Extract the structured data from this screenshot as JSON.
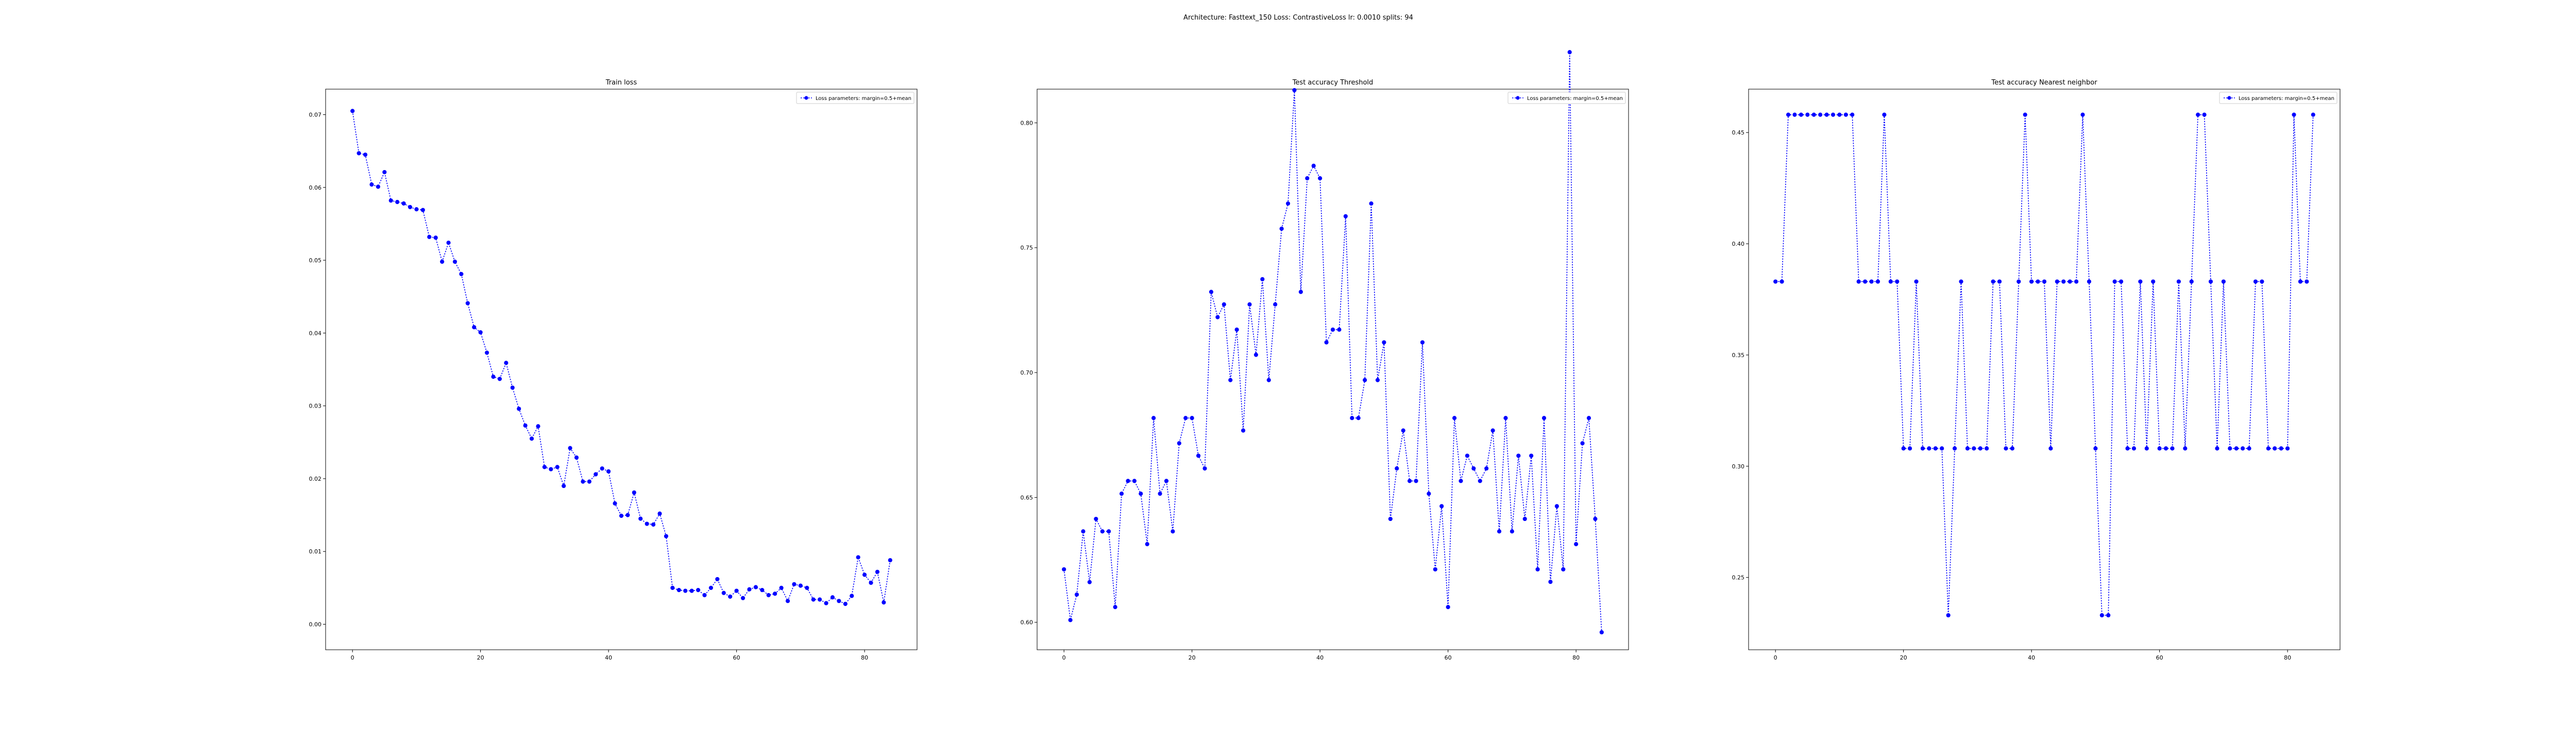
{
  "suptitle": "Architecture: Fasttext_150 Loss: ContrastiveLoss lr: 0.0010 splits: 94",
  "chart_data": [
    {
      "type": "line",
      "title": "Train loss",
      "xlabel": "",
      "ylabel": "",
      "xlim": [
        -4.2,
        88.2
      ],
      "ylim": [
        -0.0035,
        0.0735
      ],
      "xticks": [
        0,
        20,
        40,
        60,
        80
      ],
      "yticks": [
        0.0,
        0.01,
        0.02,
        0.03,
        0.04,
        0.05,
        0.06,
        0.07
      ],
      "ytick_labels": [
        "0.00",
        "0.01",
        "0.02",
        "0.03",
        "0.04",
        "0.05",
        "0.06",
        "0.07"
      ],
      "legend": "top-right",
      "grid": false,
      "series": [
        {
          "name": "Loss parameters: margin=0.5+mean",
          "color": "#0000ff",
          "marker": "circle",
          "linestyle": "dotted",
          "x": [
            0,
            1,
            2,
            3,
            4,
            5,
            6,
            7,
            8,
            9,
            10,
            11,
            12,
            13,
            14,
            15,
            16,
            17,
            18,
            19,
            20,
            21,
            22,
            23,
            24,
            25,
            26,
            27,
            28,
            29,
            30,
            31,
            32,
            33,
            34,
            35,
            36,
            37,
            38,
            39,
            40,
            41,
            42,
            43,
            44,
            45,
            46,
            47,
            48,
            49,
            50,
            51,
            52,
            53,
            54,
            55,
            56,
            57,
            58,
            59,
            60,
            61,
            62,
            63,
            64,
            65,
            66,
            67,
            68,
            69,
            70,
            71,
            72,
            73,
            74,
            75,
            76,
            77,
            78,
            79,
            80,
            81,
            82,
            83,
            84
          ],
          "y": [
            0.0705,
            0.0647,
            0.0645,
            0.0604,
            0.0601,
            0.0621,
            0.0582,
            0.058,
            0.0578,
            0.0573,
            0.057,
            0.0569,
            0.0532,
            0.0531,
            0.0498,
            0.0524,
            0.0498,
            0.0481,
            0.0441,
            0.0408,
            0.0401,
            0.0373,
            0.034,
            0.0337,
            0.0359,
            0.0325,
            0.0296,
            0.0273,
            0.0255,
            0.0272,
            0.0216,
            0.0213,
            0.0216,
            0.019,
            0.0242,
            0.0229,
            0.0196,
            0.0196,
            0.0206,
            0.0214,
            0.021,
            0.0166,
            0.0149,
            0.015,
            0.0181,
            0.0145,
            0.0138,
            0.0137,
            0.0152,
            0.0121,
            0.005,
            0.0047,
            0.0046,
            0.0046,
            0.0047,
            0.004,
            0.005,
            0.0062,
            0.0043,
            0.0038,
            0.0046,
            0.0036,
            0.0048,
            0.0051,
            0.0047,
            0.004,
            0.0042,
            0.005,
            0.0032,
            0.0055,
            0.0053,
            0.005,
            0.0034,
            0.0034,
            0.0029,
            0.0037,
            0.0032,
            0.0028,
            0.0039,
            0.0092,
            0.0068,
            0.0057,
            0.0072,
            0.003,
            0.0088
          ]
        }
      ]
    },
    {
      "type": "line",
      "title": "Test accuracy Threshold",
      "xlabel": "",
      "ylabel": "",
      "xlim": [
        -4.2,
        88.2
      ],
      "ylim": [
        0.589,
        0.8135
      ],
      "xticks": [
        0,
        20,
        40,
        60,
        80
      ],
      "yticks": [
        0.6,
        0.65,
        0.7,
        0.75,
        0.8
      ],
      "ytick_labels": [
        "0.60",
        "0.65",
        "0.70",
        "0.75",
        "0.80"
      ],
      "legend": "top-right",
      "grid": false,
      "series": [
        {
          "name": "Loss parameters: margin=0.5+mean",
          "color": "#0000ff",
          "marker": "circle",
          "linestyle": "dotted",
          "x": [
            0,
            1,
            2,
            3,
            4,
            5,
            6,
            7,
            8,
            9,
            10,
            11,
            12,
            13,
            14,
            15,
            16,
            17,
            18,
            19,
            20,
            21,
            22,
            23,
            24,
            25,
            26,
            27,
            28,
            29,
            30,
            31,
            32,
            33,
            34,
            35,
            36,
            37,
            38,
            39,
            40,
            41,
            42,
            43,
            44,
            45,
            46,
            47,
            48,
            49,
            50,
            51,
            52,
            53,
            54,
            55,
            56,
            57,
            58,
            59,
            60,
            61,
            62,
            63,
            64,
            65,
            66,
            67,
            68,
            69,
            70,
            71,
            72,
            73,
            74,
            75,
            76,
            77,
            78,
            79,
            80,
            81,
            82,
            83,
            84
          ],
          "y": [
            0.6212,
            0.6009,
            0.6111,
            0.6364,
            0.6161,
            0.6414,
            0.6364,
            0.6364,
            0.6061,
            0.6515,
            0.6566,
            0.6566,
            0.6515,
            0.6313,
            0.6818,
            0.6515,
            0.6566,
            0.6364,
            0.6717,
            0.6818,
            0.6818,
            0.6667,
            0.6616,
            0.7323,
            0.7222,
            0.7273,
            0.697,
            0.7172,
            0.6768,
            0.7273,
            0.7071,
            0.7374,
            0.697,
            0.7273,
            0.7576,
            0.7677,
            0.8131,
            0.7323,
            0.7778,
            0.7828,
            0.7778,
            0.7121,
            0.7172,
            0.7172,
            0.7626,
            0.6818,
            0.6818,
            0.697,
            0.7677,
            0.697,
            0.7121,
            0.6414,
            0.6616,
            0.6768,
            0.6566,
            0.6566,
            0.7121,
            0.6515,
            0.6212,
            0.6465,
            0.6061,
            0.6818,
            0.6566,
            0.6667,
            0.6616,
            0.6566,
            0.6616,
            0.6768,
            0.6364,
            0.6818,
            0.6364,
            0.6667,
            0.6414,
            0.6667,
            0.6212,
            0.6818,
            0.6162,
            0.6465,
            0.6212,
            0.8283,
            0.6313,
            0.6717,
            0.6818,
            0.6414,
            0.596
          ]
        }
      ]
    },
    {
      "type": "line",
      "title": "Test accuracy Nearest neighbor",
      "xlabel": "",
      "ylabel": "",
      "xlim": [
        -4.2,
        88.2
      ],
      "ylim": [
        0.2175,
        0.4695
      ],
      "xticks": [
        0,
        20,
        40,
        60,
        80
      ],
      "yticks": [
        0.25,
        0.3,
        0.35,
        0.4,
        0.45
      ],
      "ytick_labels": [
        "0.25",
        "0.30",
        "0.35",
        "0.40",
        "0.45"
      ],
      "legend": "top-right",
      "grid": false,
      "series": [
        {
          "name": "Loss parameters: margin=0.5+mean",
          "color": "#0000ff",
          "marker": "circle",
          "linestyle": "dotted",
          "x": [
            0,
            1,
            2,
            3,
            4,
            5,
            6,
            7,
            8,
            9,
            10,
            11,
            12,
            13,
            14,
            15,
            16,
            17,
            18,
            19,
            20,
            21,
            22,
            23,
            24,
            25,
            26,
            27,
            28,
            29,
            30,
            31,
            32,
            33,
            34,
            35,
            36,
            37,
            38,
            39,
            40,
            41,
            42,
            43,
            44,
            45,
            46,
            47,
            48,
            49,
            50,
            51,
            52,
            53,
            54,
            55,
            56,
            57,
            58,
            59,
            60,
            61,
            62,
            63,
            64,
            65,
            66,
            67,
            68,
            69,
            70,
            71,
            72,
            73,
            74,
            75,
            76,
            77,
            78,
            79,
            80,
            81,
            82,
            83,
            84
          ],
          "y": [
            0.383,
            0.383,
            0.458,
            0.458,
            0.458,
            0.458,
            0.458,
            0.458,
            0.458,
            0.458,
            0.458,
            0.458,
            0.458,
            0.383,
            0.383,
            0.383,
            0.383,
            0.458,
            0.383,
            0.383,
            0.308,
            0.308,
            0.383,
            0.308,
            0.308,
            0.308,
            0.308,
            0.233,
            0.308,
            0.383,
            0.308,
            0.308,
            0.308,
            0.308,
            0.383,
            0.383,
            0.308,
            0.308,
            0.383,
            0.458,
            0.383,
            0.383,
            0.383,
            0.308,
            0.383,
            0.383,
            0.383,
            0.383,
            0.458,
            0.383,
            0.308,
            0.233,
            0.233,
            0.383,
            0.383,
            0.308,
            0.308,
            0.383,
            0.308,
            0.383,
            0.308,
            0.308,
            0.308,
            0.383,
            0.308,
            0.383,
            0.458,
            0.458,
            0.383,
            0.308,
            0.383,
            0.308,
            0.308,
            0.308,
            0.308,
            0.383,
            0.383,
            0.308,
            0.308,
            0.308,
            0.308,
            0.458,
            0.383,
            0.383,
            0.458
          ]
        }
      ]
    }
  ]
}
